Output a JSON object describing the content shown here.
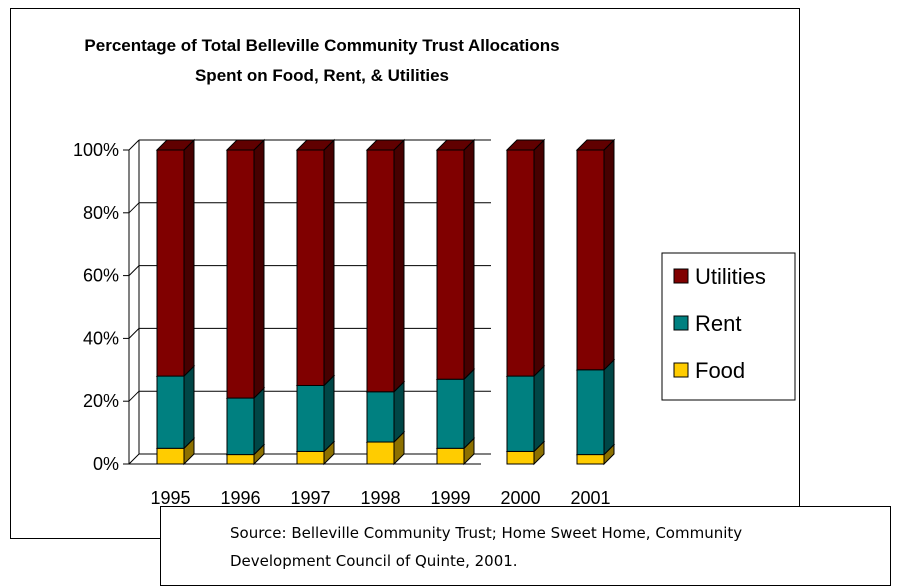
{
  "chart_data": {
    "type": "bar",
    "stacked": true,
    "percent": true,
    "title_lines": [
      "Percentage of Total Belleville Community Trust Allocations",
      "Spent on Food, Rent, & Utilities"
    ],
    "categories": [
      "1995",
      "1996",
      "1997",
      "1998",
      "1999",
      "2000",
      "2001"
    ],
    "series": [
      {
        "name": "Food",
        "color": "#ffcc00",
        "values": [
          5,
          3,
          4,
          7,
          5,
          4,
          3
        ]
      },
      {
        "name": "Rent",
        "color": "#008080",
        "values": [
          23,
          18,
          21,
          16,
          22,
          24,
          27
        ]
      },
      {
        "name": "Utilities",
        "color": "#800000",
        "values": [
          72,
          79,
          75,
          77,
          73,
          72,
          70
        ]
      }
    ],
    "yticks": [
      "0%",
      "20%",
      "40%",
      "60%",
      "80%",
      "100%"
    ],
    "ylim": [
      0,
      100
    ],
    "legend_position": "right",
    "legend_order": [
      "Utilities",
      "Rent",
      "Food"
    ],
    "grid": true,
    "three_d": true
  },
  "source": {
    "line1": "Source:  Belleville Community Trust; Home Sweet Home, Community",
    "line2": "Development Council of Quinte, 2001."
  }
}
